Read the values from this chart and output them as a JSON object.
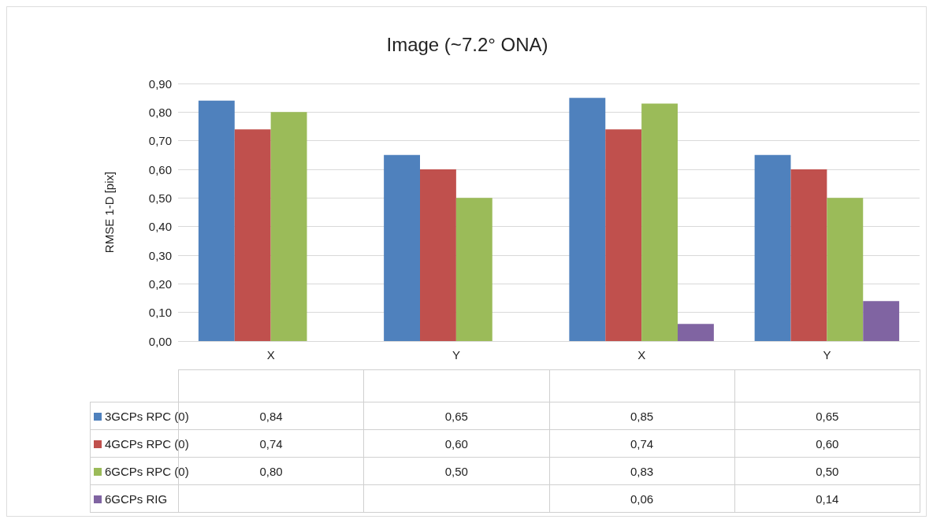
{
  "chart_data": {
    "type": "bar",
    "title": "Image (~7.2° ONA)",
    "ylabel": "RMSE 1-D [pix]",
    "categories": [
      "X",
      "Y",
      "X",
      "Y"
    ],
    "series": [
      {
        "name": "3GCPs RPC (0)",
        "color": "#4f81bd",
        "values": [
          0.84,
          0.65,
          0.85,
          0.65
        ],
        "value_labels": [
          "0,84",
          "0,65",
          "0,85",
          "0,65"
        ]
      },
      {
        "name": "4GCPs RPC (0)",
        "color": "#c0504d",
        "values": [
          0.74,
          0.6,
          0.74,
          0.6
        ],
        "value_labels": [
          "0,74",
          "0,60",
          "0,74",
          "0,60"
        ]
      },
      {
        "name": "6GCPs RPC (0)",
        "color": "#9bbb59",
        "values": [
          0.8,
          0.5,
          0.83,
          0.5
        ],
        "value_labels": [
          "0,80",
          "0,50",
          "0,83",
          "0,50"
        ]
      },
      {
        "name": "6GCPs RIG",
        "color": "#8064a2",
        "values": [
          null,
          null,
          0.06,
          0.14
        ],
        "value_labels": [
          null,
          null,
          "0,06",
          "0,14"
        ]
      }
    ],
    "ylim": [
      0,
      0.9
    ],
    "yticks": [
      {
        "value": 0,
        "label": "0,00"
      },
      {
        "value": 0.1,
        "label": "0,10"
      },
      {
        "value": 0.2,
        "label": "0,20"
      },
      {
        "value": 0.3,
        "label": "0,30"
      },
      {
        "value": 0.4,
        "label": "0,40"
      },
      {
        "value": 0.5,
        "label": "0,50"
      },
      {
        "value": 0.6,
        "label": "0,60"
      },
      {
        "value": 0.7,
        "label": "0,70"
      },
      {
        "value": 0.8,
        "label": "0,80"
      },
      {
        "value": 0.9,
        "label": "0,90"
      }
    ],
    "grid": "y",
    "legend": "bottom left"
  }
}
